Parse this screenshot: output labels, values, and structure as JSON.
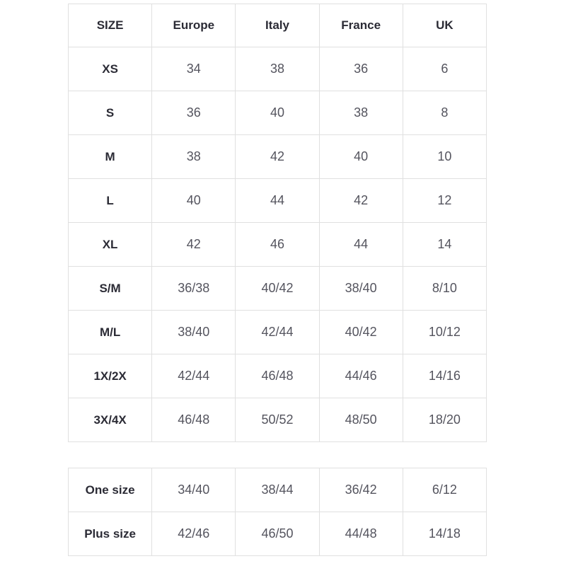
{
  "colors": {
    "border": "#e0e0e0",
    "header-text": "#2b2b35",
    "cell-text": "#54545e",
    "page-bg": "#ffffff"
  },
  "size_table": {
    "headers": [
      "SIZE",
      "Europe",
      "Italy",
      "France",
      "UK"
    ],
    "rows": [
      {
        "label": "XS",
        "values": [
          "34",
          "38",
          "36",
          "6"
        ]
      },
      {
        "label": "S",
        "values": [
          "36",
          "40",
          "38",
          "8"
        ]
      },
      {
        "label": "M",
        "values": [
          "38",
          "42",
          "40",
          "10"
        ]
      },
      {
        "label": "L",
        "values": [
          "40",
          "44",
          "42",
          "12"
        ]
      },
      {
        "label": "XL",
        "values": [
          "42",
          "46",
          "44",
          "14"
        ]
      },
      {
        "label": "S/M",
        "values": [
          "36/38",
          "40/42",
          "38/40",
          "8/10"
        ]
      },
      {
        "label": "M/L",
        "values": [
          "38/40",
          "42/44",
          "40/42",
          "10/12"
        ]
      },
      {
        "label": "1X/2X",
        "values": [
          "42/44",
          "46/48",
          "44/46",
          "14/16"
        ]
      },
      {
        "label": "3X/4X",
        "values": [
          "46/48",
          "50/52",
          "48/50",
          "18/20"
        ]
      }
    ]
  },
  "special_table": {
    "rows": [
      {
        "label": "One size",
        "values": [
          "34/40",
          "38/44",
          "36/42",
          "6/12"
        ]
      },
      {
        "label": "Plus size",
        "values": [
          "42/46",
          "46/50",
          "44/48",
          "14/18"
        ]
      }
    ]
  }
}
